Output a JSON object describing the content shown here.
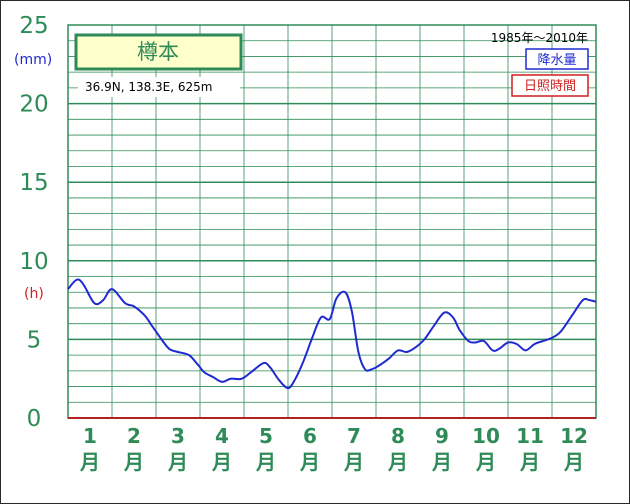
{
  "chart_data": {
    "type": "line",
    "station": "樽本",
    "coords": "36.9N,  138.3E,  625m",
    "period": "1985年〜2010年",
    "legend": [
      "降水量",
      "日照時間"
    ],
    "unit_precip": "(mm)",
    "unit_sun": "(h)",
    "y_ticks_precip": [
      "25",
      "20"
    ],
    "y_ticks_sun": [
      "15",
      "10",
      "5",
      "0"
    ],
    "ylim": [
      0,
      25
    ],
    "month_numbers": [
      "1",
      "2",
      "3",
      "4",
      "5",
      "6",
      "7",
      "8",
      "9",
      "10",
      "11",
      "12"
    ],
    "month_suffix": "月",
    "series": [
      {
        "name": "日照時間",
        "color": "#1f2bd0",
        "x": [
          0.0,
          0.2,
          0.35,
          0.6,
          0.8,
          1.0,
          1.3,
          1.5,
          1.75,
          1.9,
          2.1,
          2.3,
          2.5,
          2.75,
          2.95,
          3.1,
          3.3,
          3.5,
          3.7,
          3.95,
          4.2,
          4.45,
          4.6,
          4.8,
          5.0,
          5.15,
          5.35,
          5.55,
          5.75,
          5.95,
          6.1,
          6.3,
          6.45,
          6.6,
          6.75,
          6.9,
          7.05,
          7.3,
          7.5,
          7.7,
          7.9,
          8.1,
          8.3,
          8.55,
          8.75,
          8.9,
          9.1,
          9.25,
          9.45,
          9.65,
          9.8,
          10.0,
          10.2,
          10.4,
          10.6,
          10.8,
          11.0,
          11.2,
          11.45,
          11.7,
          11.85,
          12.0
        ],
        "values": [
          8.2,
          8.8,
          8.5,
          7.3,
          7.5,
          8.2,
          7.3,
          7.1,
          6.5,
          5.9,
          5.1,
          4.4,
          4.2,
          4.0,
          3.4,
          2.9,
          2.6,
          2.3,
          2.5,
          2.5,
          3.0,
          3.5,
          3.2,
          2.4,
          1.9,
          2.4,
          3.6,
          5.1,
          6.4,
          6.3,
          7.6,
          8.0,
          6.8,
          4.2,
          3.1,
          3.1,
          3.3,
          3.8,
          4.3,
          4.2,
          4.5,
          5.0,
          5.8,
          6.7,
          6.4,
          5.6,
          4.9,
          4.8,
          4.9,
          4.3,
          4.4,
          4.8,
          4.7,
          4.3,
          4.7,
          4.9,
          5.1,
          5.5,
          6.5,
          7.5,
          7.5,
          7.4
        ]
      }
    ]
  }
}
